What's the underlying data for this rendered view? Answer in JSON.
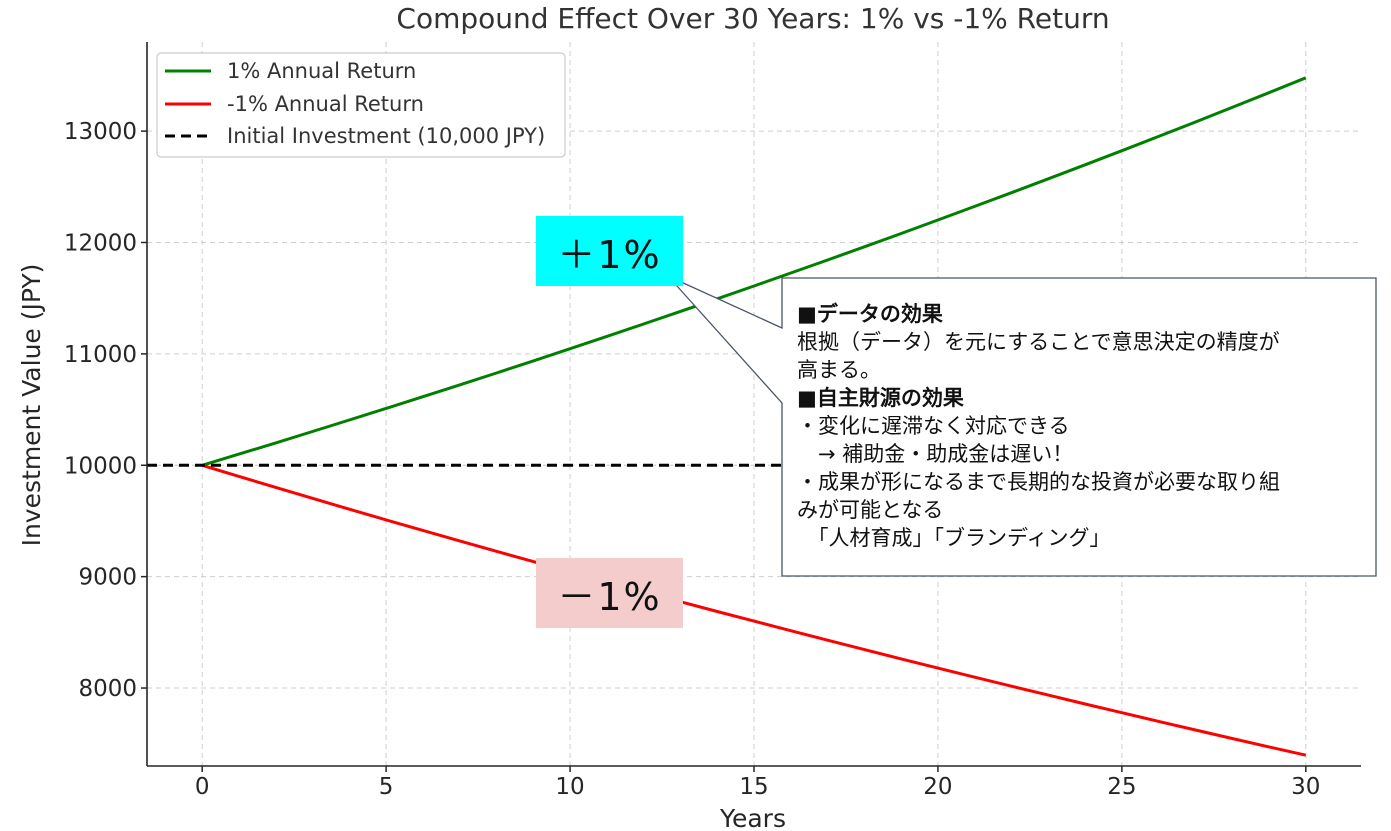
{
  "chart_data": {
    "type": "line",
    "title": "Compound Effect Over 30 Years: 1% vs -1% Return",
    "xlabel": "Years",
    "ylabel": "Investment Value (JPY)",
    "xlim": [
      -1.5,
      31.5
    ],
    "ylim": [
      7300,
      13800
    ],
    "xticks": [
      0,
      5,
      10,
      15,
      20,
      25,
      30
    ],
    "yticks": [
      8000,
      9000,
      10000,
      11000,
      12000,
      13000
    ],
    "grid": true,
    "legend_position": "upper-left",
    "series": [
      {
        "name": "1% Annual Return",
        "color": "#008000",
        "style": "solid",
        "initial": 10000,
        "rate": 0.01,
        "x_range": [
          0,
          30
        ],
        "end_value": 13478
      },
      {
        "name": "-1% Annual Return",
        "color": "#ff0000",
        "style": "solid",
        "initial": 10000,
        "rate": -0.01,
        "x_range": [
          0,
          30
        ],
        "end_value": 7397
      },
      {
        "name": "Initial Investment (10,000 JPY)",
        "color": "#000000",
        "style": "dashed",
        "constant": 10000
      }
    ]
  },
  "annotations": {
    "plus_badge": {
      "text": "＋1%",
      "color": "#00ffff"
    },
    "minus_badge": {
      "text": "－1%",
      "color": "#f4cccc"
    },
    "callout": {
      "lines": [
        "■データの効果",
        "根拠（データ）を元にすることで意思決定の精度が",
        "高まる。",
        "■自主財源の効果",
        "・変化に遅滞なく対応できる",
        "　→ 補助金・助成金は遅い！",
        "・成果が形になるまで長期的な投資が必要な取り組",
        "みが可能となる",
        "　「人材育成」「ブランディング」"
      ]
    }
  }
}
